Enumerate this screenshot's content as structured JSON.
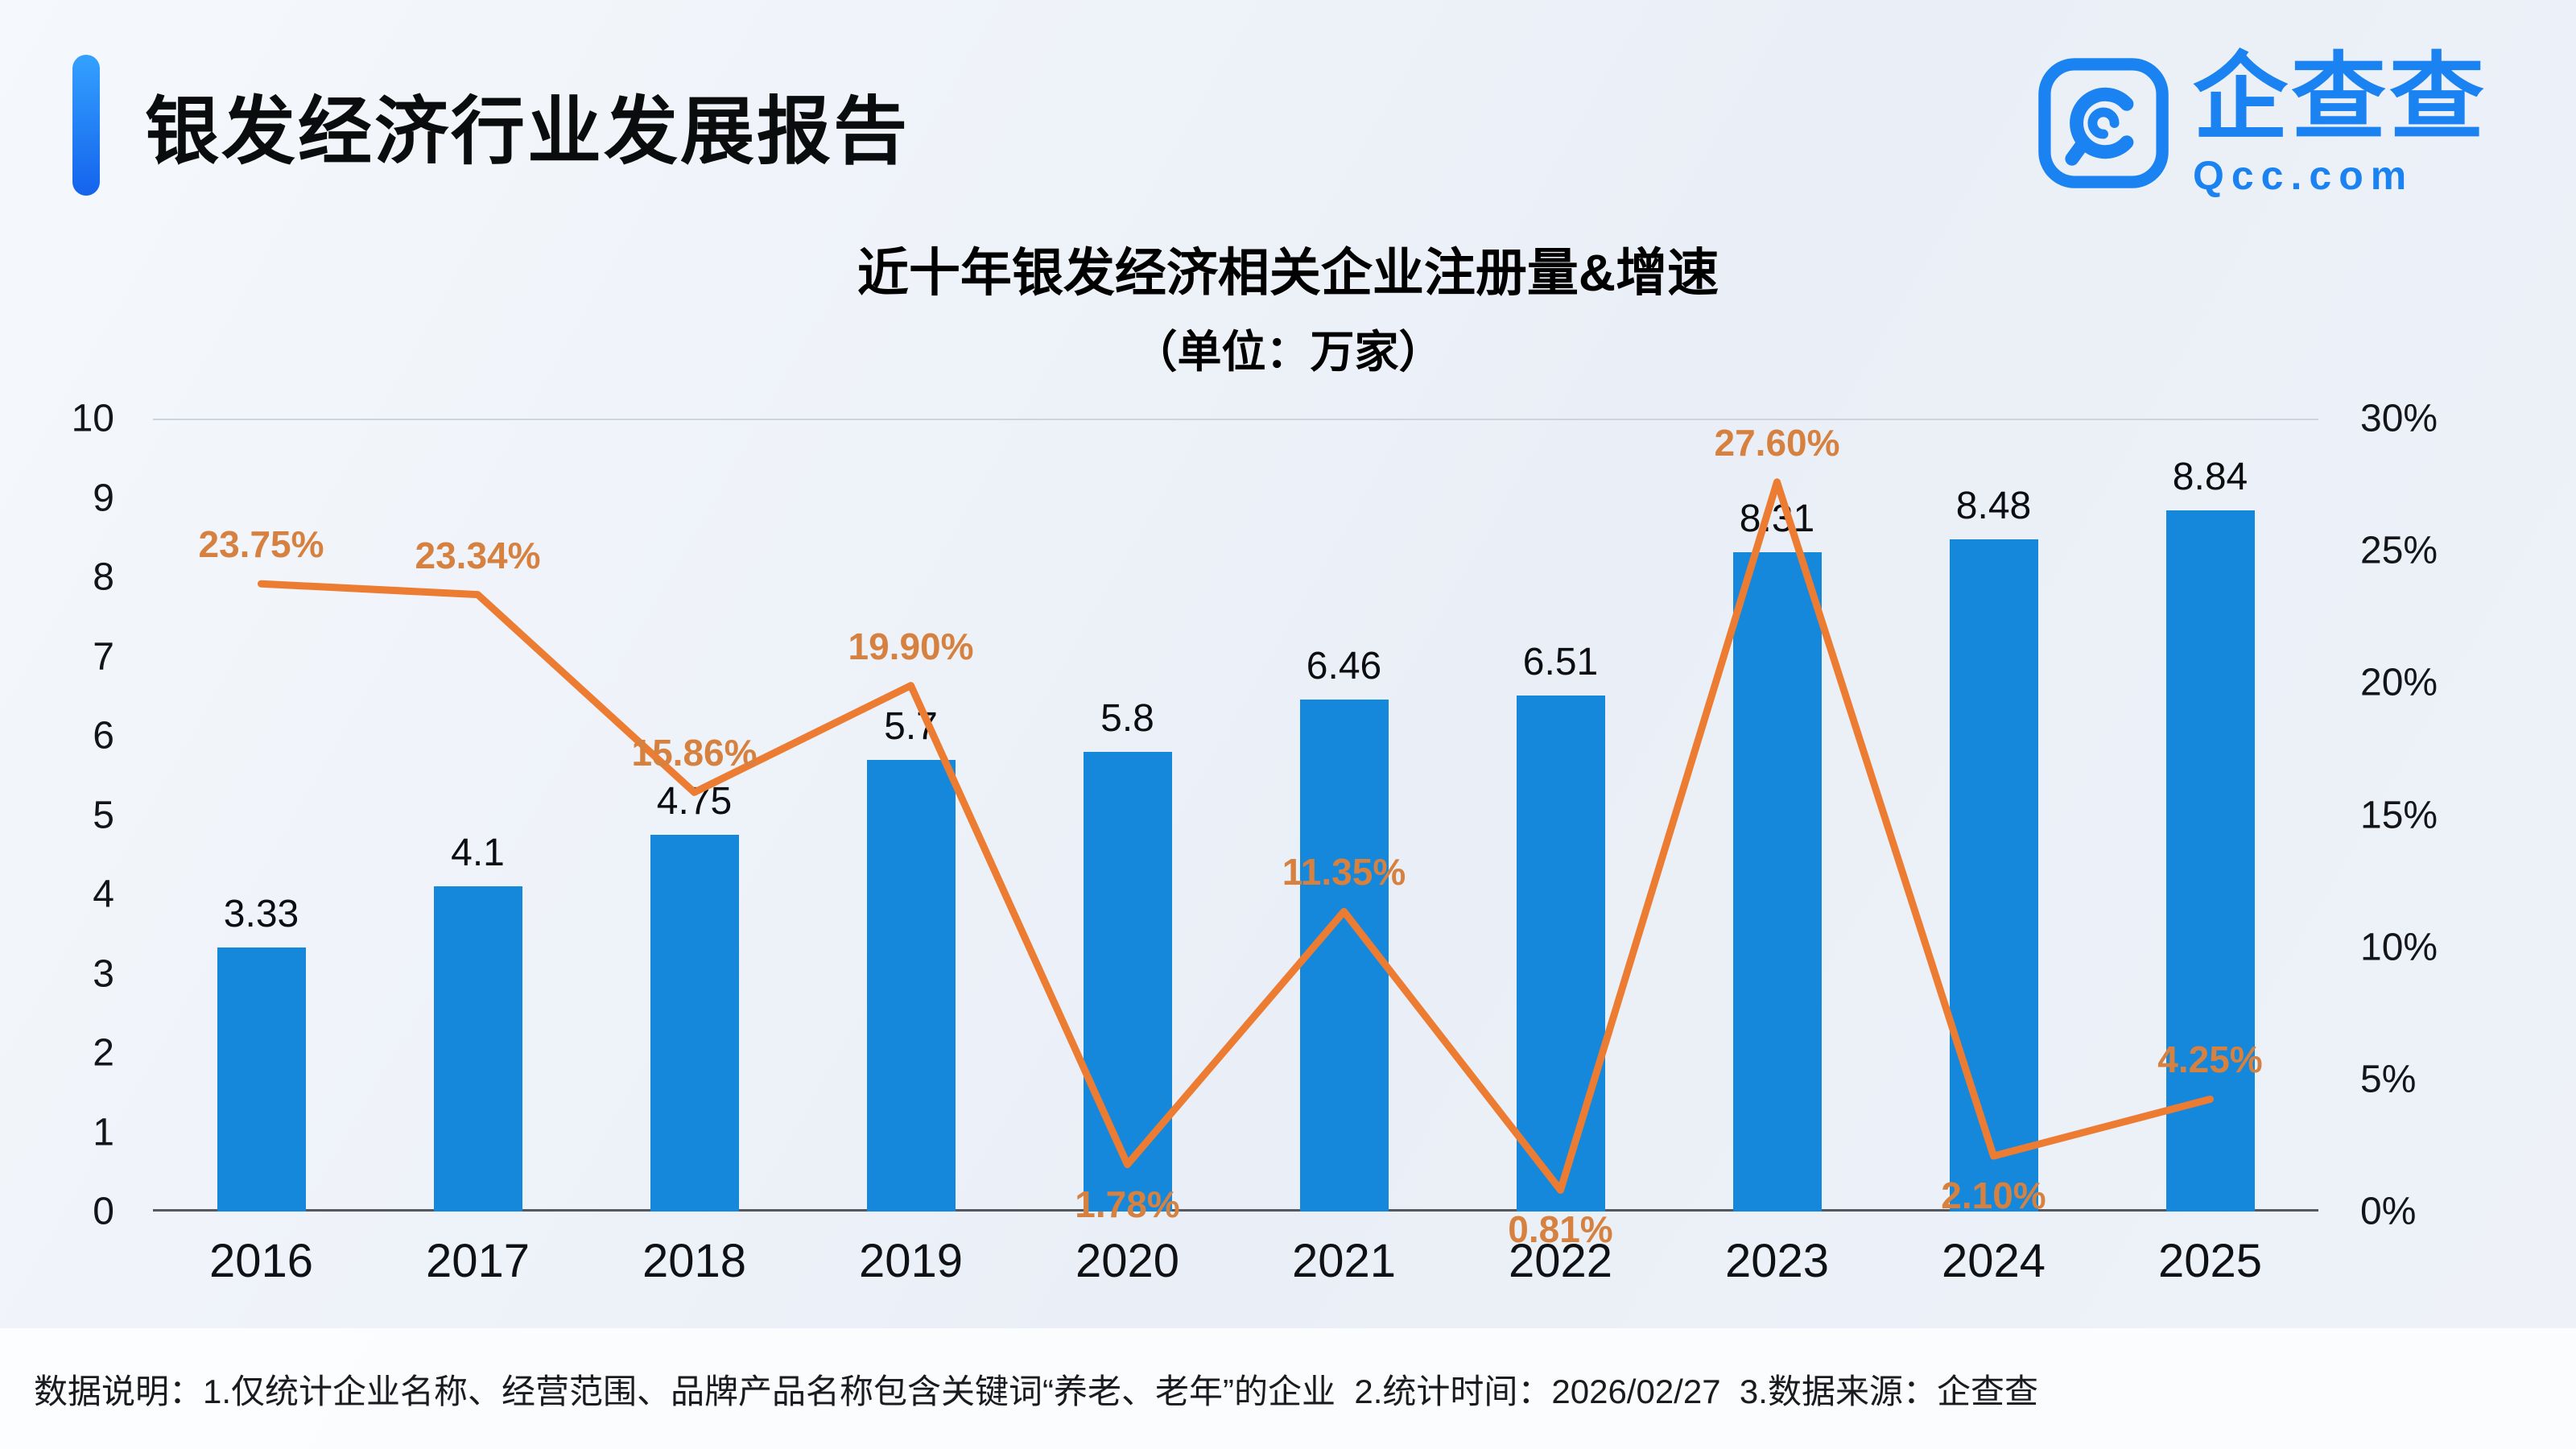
{
  "header": {
    "report_title": "银发经济行业发展报告",
    "logo_text": "企查查",
    "logo_domain": "Qcc.com"
  },
  "chart_data": {
    "type": "bar+line",
    "title": "近十年银发经济相关企业注册量&增速",
    "subtitle": "（单位：万家）",
    "categories": [
      "2016",
      "2017",
      "2018",
      "2019",
      "2020",
      "2021",
      "2022",
      "2023",
      "2024",
      "2025"
    ],
    "series": [
      {
        "name": "注册量（万家）",
        "type": "bar",
        "axis": "left",
        "color": "#1688db",
        "values": [
          3.33,
          4.1,
          4.75,
          5.7,
          5.8,
          6.46,
          6.51,
          8.31,
          8.48,
          8.84
        ],
        "labels": [
          "3.33",
          "4.1",
          "4.75",
          "5.7",
          "5.8",
          "6.46",
          "6.51",
          "8.31",
          "8.48",
          "8.84"
        ]
      },
      {
        "name": "增速",
        "type": "line",
        "axis": "right",
        "color": "#ed7c33",
        "values": [
          23.75,
          23.34,
          15.86,
          19.9,
          1.78,
          11.35,
          0.81,
          27.6,
          2.1,
          4.25
        ],
        "labels": [
          "23.75%",
          "23.34%",
          "15.86%",
          "19.90%",
          "1.78%",
          "11.35%",
          "0.81%",
          "27.60%",
          "2.10%",
          "4.25%"
        ]
      }
    ],
    "left_axis": {
      "min": 0,
      "max": 10,
      "step": 1,
      "tick_labels": [
        "0",
        "1",
        "2",
        "3",
        "4",
        "5",
        "6",
        "7",
        "8",
        "9",
        "10"
      ]
    },
    "right_axis": {
      "min": 0,
      "max": 30,
      "step": 5,
      "tick_labels": [
        "0%",
        "5%",
        "10%",
        "15%",
        "20%",
        "25%",
        "30%"
      ]
    },
    "grid": "top-line-and-baseline-only",
    "legend": "none"
  },
  "footer": {
    "note": "数据说明：1.仅统计企业名称、经营范围、品牌产品名称包含关键词“养老、老年”的企业  2.统计时间：2026/02/27  3.数据来源：企查查"
  },
  "colors": {
    "brand_blue": "#1b82f2",
    "bar_blue": "#1688db",
    "line_orange": "#ed7c33",
    "pct_label_orange": "#d6813f",
    "background": "#eef2f8"
  }
}
